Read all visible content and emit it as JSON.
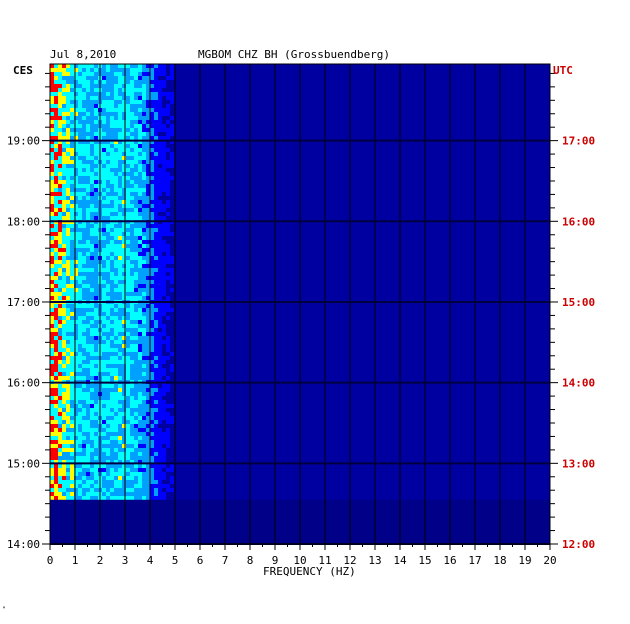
{
  "header": {
    "date": "Jul 8,2010",
    "station": "MGBOM CHZ BH (Grossbuendberg)",
    "left_tz": "CES",
    "right_tz": "UTC"
  },
  "chart_data": {
    "type": "heatmap",
    "title": "MGBOM CHZ BH (Grossbuendberg)",
    "xlabel": "FREQUENCY (HZ)",
    "ylabel": "",
    "xlim": [
      0,
      20
    ],
    "x_ticks": [
      "0",
      "1",
      "2",
      "3",
      "4",
      "5",
      "6",
      "7",
      "8",
      "9",
      "10",
      "11",
      "12",
      "13",
      "14",
      "15",
      "16",
      "17",
      "18",
      "19",
      "20"
    ],
    "y_left_ticks": [
      "14:00",
      "15:00",
      "16:00",
      "17:00",
      "18:00",
      "19:00"
    ],
    "y_right_ticks": [
      "12:00",
      "13:00",
      "14:00",
      "15:00",
      "16:00",
      "17:00"
    ],
    "y_left_range_hours": [
      14.0,
      19.95
    ],
    "utc_offset_hours": -2,
    "grid": true,
    "colormap": [
      "#00008c",
      "#0000ff",
      "#00a0ff",
      "#00ffff",
      "#ffff00",
      "#ff0000"
    ],
    "background_color": "#0000a0",
    "data_ends_at_hour": 14.55
  },
  "corner_mark": "\""
}
